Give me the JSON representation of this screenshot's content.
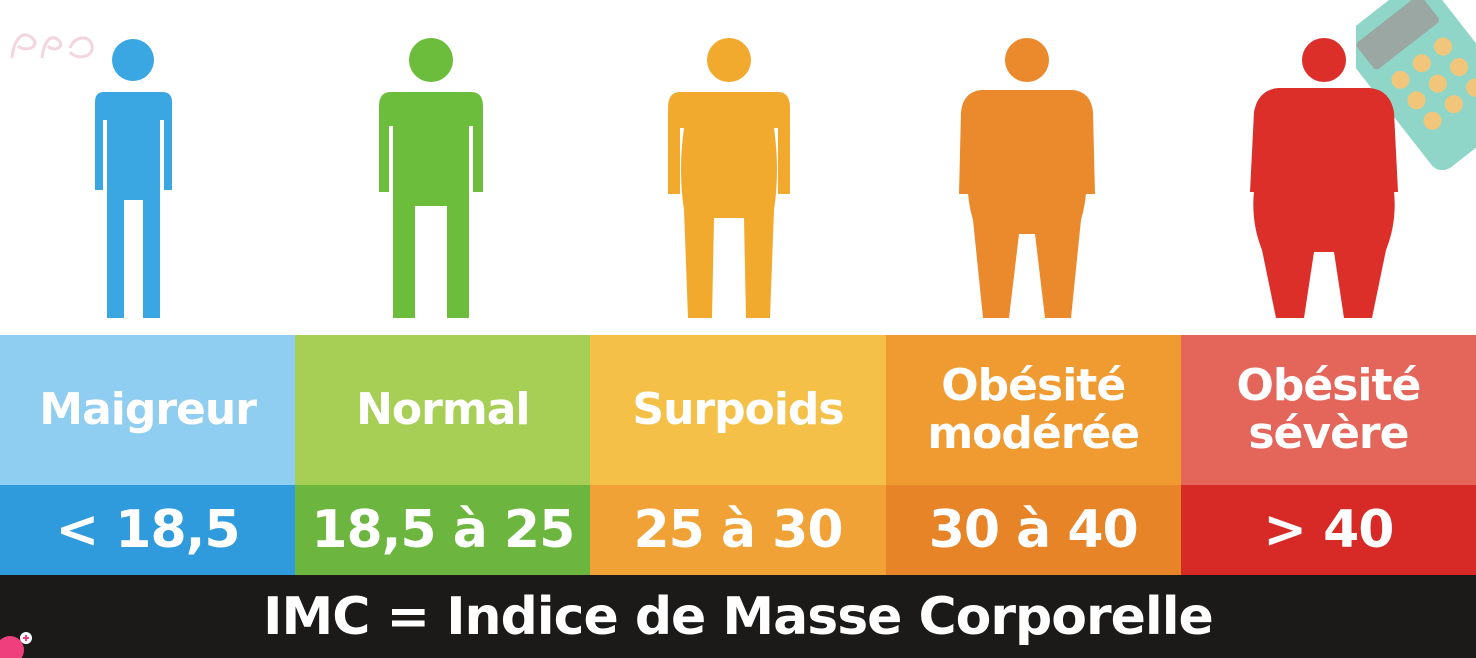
{
  "colors": {
    "maigreur": {
      "figure": "#3aa6e2",
      "label_bg": "#8fcdf1",
      "range_bg": "#2f9bdc"
    },
    "normal": {
      "figure": "#6cbd3c",
      "label_bg": "#a8cf55",
      "range_bg": "#6cb63f"
    },
    "surpoids": {
      "figure": "#f1aa2e",
      "label_bg": "#f4c048",
      "range_bg": "#f0a236"
    },
    "moderee": {
      "figure": "#ea8a2c",
      "label_bg": "#f09b32",
      "range_bg": "#e88428"
    },
    "severe": {
      "figure": "#dd2f2a",
      "label_bg": "#e4655a",
      "range_bg": "#d72a27"
    }
  },
  "categories": [
    {
      "key": "maigreur",
      "label": "Maigreur",
      "range": "< 18,5"
    },
    {
      "key": "normal",
      "label": "Normal",
      "range": "18,5 à 25"
    },
    {
      "key": "surpoids",
      "label": "Surpoids",
      "range": "25 à 30"
    },
    {
      "key": "moderee",
      "label": "Obésité modérée",
      "range": "30 à 40"
    },
    {
      "key": "severe",
      "label": "Obésité sévère",
      "range": "> 40"
    }
  ],
  "footer": {
    "text": "IMC = Indice de Masse Corporelle"
  },
  "decorations": [
    "calculator-icon",
    "logo-scrawl"
  ]
}
